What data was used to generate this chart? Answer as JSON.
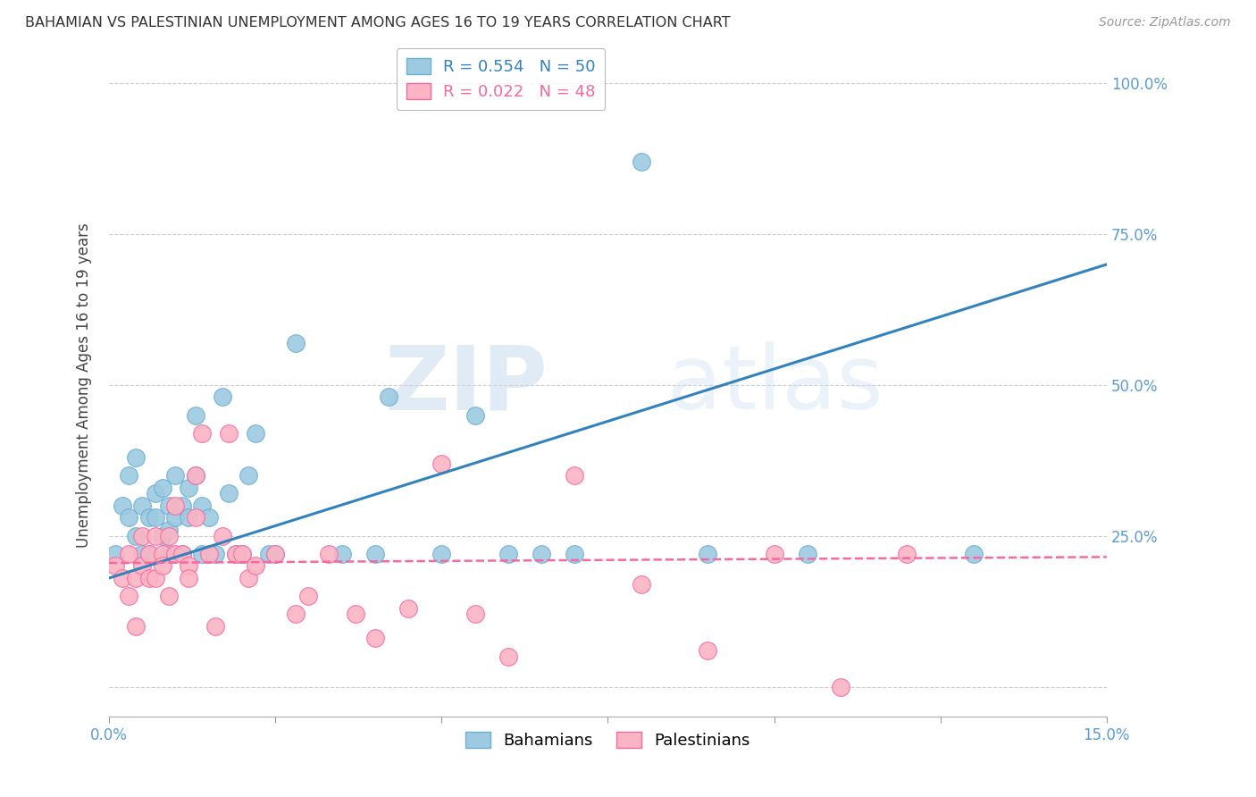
{
  "title": "BAHAMIAN VS PALESTINIAN UNEMPLOYMENT AMONG AGES 16 TO 19 YEARS CORRELATION CHART",
  "source": "Source: ZipAtlas.com",
  "ylabel": "Unemployment Among Ages 16 to 19 years",
  "xlim": [
    0.0,
    0.15
  ],
  "ylim": [
    -0.05,
    1.05
  ],
  "grid_color": "#cccccc",
  "background_color": "#ffffff",
  "watermark_text": "ZIP",
  "watermark_text2": "atlas",
  "bahamian_color": "#9ecae1",
  "bahamian_edge_color": "#6baed6",
  "palestinian_color": "#fbb4c3",
  "palestinian_edge_color": "#f768a1",
  "bahamian_R": 0.554,
  "bahamian_N": 50,
  "palestinian_R": 0.022,
  "palestinian_N": 48,
  "bahamian_line_color": "#3182bd",
  "palestinian_line_color": "#f768a1",
  "bahamian_line_x": [
    0.0,
    0.15
  ],
  "bahamian_line_y": [
    0.18,
    0.7
  ],
  "palestinian_line_x": [
    0.0,
    0.15
  ],
  "palestinian_line_y": [
    0.205,
    0.215
  ],
  "bahamian_x": [
    0.001,
    0.002,
    0.003,
    0.003,
    0.004,
    0.004,
    0.005,
    0.005,
    0.006,
    0.006,
    0.007,
    0.007,
    0.008,
    0.008,
    0.009,
    0.009,
    0.009,
    0.01,
    0.01,
    0.011,
    0.011,
    0.012,
    0.012,
    0.013,
    0.013,
    0.014,
    0.014,
    0.015,
    0.016,
    0.017,
    0.018,
    0.019,
    0.02,
    0.021,
    0.022,
    0.024,
    0.025,
    0.028,
    0.035,
    0.04,
    0.042,
    0.05,
    0.055,
    0.06,
    0.065,
    0.07,
    0.08,
    0.09,
    0.105,
    0.13
  ],
  "bahamian_y": [
    0.22,
    0.3,
    0.28,
    0.35,
    0.25,
    0.38,
    0.22,
    0.3,
    0.28,
    0.22,
    0.32,
    0.28,
    0.25,
    0.33,
    0.22,
    0.3,
    0.26,
    0.28,
    0.35,
    0.3,
    0.22,
    0.33,
    0.28,
    0.35,
    0.45,
    0.3,
    0.22,
    0.28,
    0.22,
    0.48,
    0.32,
    0.22,
    0.22,
    0.35,
    0.42,
    0.22,
    0.22,
    0.57,
    0.22,
    0.22,
    0.48,
    0.22,
    0.45,
    0.22,
    0.22,
    0.22,
    0.87,
    0.22,
    0.22,
    0.22
  ],
  "palestinian_x": [
    0.001,
    0.002,
    0.003,
    0.003,
    0.004,
    0.004,
    0.005,
    0.005,
    0.006,
    0.006,
    0.007,
    0.007,
    0.008,
    0.008,
    0.009,
    0.009,
    0.01,
    0.01,
    0.011,
    0.012,
    0.012,
    0.013,
    0.013,
    0.014,
    0.015,
    0.016,
    0.017,
    0.018,
    0.019,
    0.02,
    0.021,
    0.022,
    0.025,
    0.028,
    0.03,
    0.033,
    0.037,
    0.04,
    0.045,
    0.05,
    0.055,
    0.06,
    0.07,
    0.08,
    0.09,
    0.1,
    0.11,
    0.12
  ],
  "palestinian_y": [
    0.2,
    0.18,
    0.15,
    0.22,
    0.18,
    0.1,
    0.25,
    0.2,
    0.18,
    0.22,
    0.25,
    0.18,
    0.22,
    0.2,
    0.15,
    0.25,
    0.22,
    0.3,
    0.22,
    0.2,
    0.18,
    0.28,
    0.35,
    0.42,
    0.22,
    0.1,
    0.25,
    0.42,
    0.22,
    0.22,
    0.18,
    0.2,
    0.22,
    0.12,
    0.15,
    0.22,
    0.12,
    0.08,
    0.13,
    0.37,
    0.12,
    0.05,
    0.35,
    0.17,
    0.06,
    0.22,
    0.0,
    0.22
  ]
}
